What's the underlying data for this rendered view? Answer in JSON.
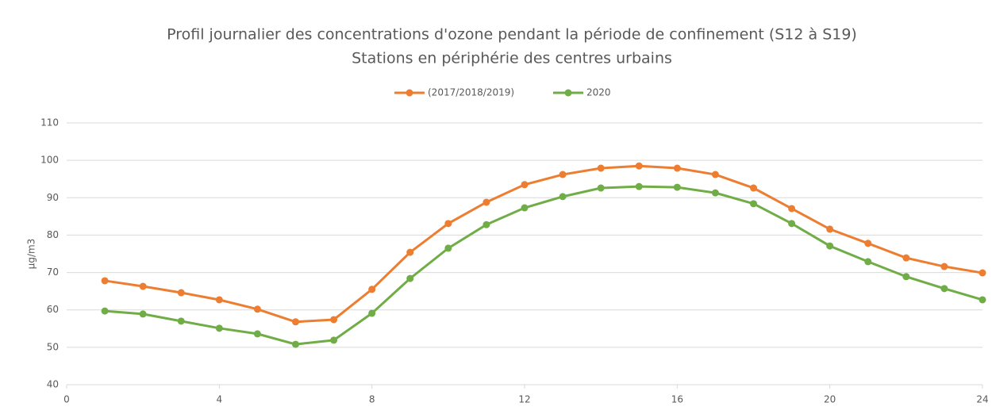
{
  "chart_data": {
    "type": "line",
    "title": "Profil journalier des concentrations d'ozone pendant la période de confinement (S12 à S19)",
    "subtitle": "Stations en périphérie des centres urbains",
    "y_label": "µg/m3",
    "x": [
      1,
      2,
      3,
      4,
      5,
      6,
      7,
      8,
      9,
      10,
      11,
      12,
      13,
      14,
      15,
      16,
      17,
      18,
      19,
      20,
      21,
      22,
      23,
      24
    ],
    "series": [
      {
        "name": "(2017/2018/2019)",
        "color": "#ed7d31",
        "values": [
          67.8,
          66.3,
          64.6,
          62.7,
          60.2,
          56.8,
          57.4,
          65.5,
          75.4,
          83.1,
          88.8,
          93.5,
          96.2,
          97.9,
          98.5,
          97.9,
          96.2,
          92.6,
          87.1,
          81.6,
          77.8,
          73.9,
          71.6,
          69.9
        ]
      },
      {
        "name": "2020",
        "color": "#70ad47",
        "values": [
          59.7,
          58.9,
          57.0,
          55.1,
          53.6,
          50.8,
          51.9,
          59.1,
          68.4,
          76.5,
          82.8,
          87.3,
          90.3,
          92.6,
          93.0,
          92.8,
          91.3,
          88.4,
          83.1,
          77.1,
          72.9,
          68.9,
          65.7,
          62.7
        ]
      }
    ],
    "xlim": [
      0,
      24
    ],
    "xticks": [
      0,
      4,
      8,
      12,
      16,
      20,
      24
    ],
    "ylim": [
      40,
      110
    ],
    "yticks": [
      40,
      50,
      60,
      70,
      80,
      90,
      100,
      110
    ],
    "grid": true,
    "legend": "top"
  }
}
